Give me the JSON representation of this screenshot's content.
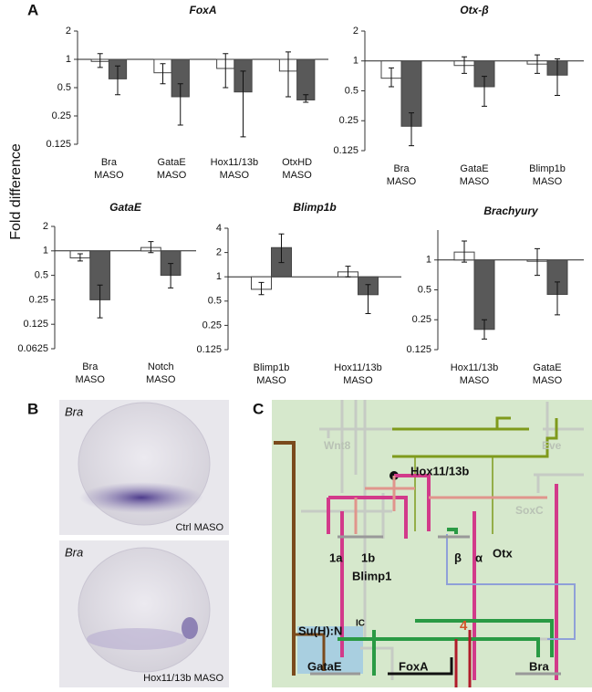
{
  "chart_data": [
    {
      "type": "bar",
      "title": "FoxA",
      "log_scale": true,
      "ylim": [
        0.125,
        2
      ],
      "yticks": [
        2,
        1,
        0.5,
        0.25,
        0.125
      ],
      "categories": [
        [
          "Bra",
          "MASO"
        ],
        [
          "GataE",
          "MASO"
        ],
        [
          "Hox11/13b",
          "MASO"
        ],
        [
          "OtxHD",
          "MASO"
        ]
      ],
      "series": [
        {
          "color": "#ffffff",
          "values": [
            0.95,
            0.72,
            0.8,
            0.75
          ],
          "err_low": [
            0.82,
            0.55,
            0.5,
            0.4
          ],
          "err_high": [
            1.15,
            0.9,
            1.15,
            1.2
          ]
        },
        {
          "color": "#595959",
          "values": [
            0.62,
            0.4,
            0.45,
            0.37
          ],
          "err_low": [
            0.42,
            0.2,
            0.15,
            0.35
          ],
          "err_high": [
            0.85,
            0.55,
            0.75,
            0.42
          ]
        }
      ]
    },
    {
      "type": "bar",
      "title": "Otx-β",
      "log_scale": true,
      "ylim": [
        0.125,
        2
      ],
      "yticks": [
        2,
        1,
        0.5,
        0.25,
        0.125
      ],
      "categories": [
        [
          "Bra",
          "MASO"
        ],
        [
          "GataE",
          "MASO"
        ],
        [
          "Blimp1b",
          "MASO"
        ]
      ],
      "series": [
        {
          "color": "#ffffff",
          "values": [
            0.67,
            0.9,
            0.93
          ],
          "err_low": [
            0.55,
            0.75,
            0.75
          ],
          "err_high": [
            0.85,
            1.1,
            1.15
          ]
        },
        {
          "color": "#595959",
          "values": [
            0.22,
            0.55,
            0.72
          ],
          "err_low": [
            0.14,
            0.35,
            0.45
          ],
          "err_high": [
            0.3,
            0.7,
            1.05
          ]
        }
      ]
    },
    {
      "type": "bar",
      "title": "GataE",
      "log_scale": true,
      "ylim": [
        0.0625,
        2
      ],
      "yticks": [
        2,
        1,
        0.5,
        0.25,
        0.125,
        0.0625
      ],
      "categories": [
        [
          "Bra",
          "MASO"
        ],
        [
          "Notch",
          "MASO"
        ]
      ],
      "series": [
        {
          "color": "#ffffff",
          "values": [
            0.82,
            1.1
          ],
          "err_low": [
            0.75,
            0.95
          ],
          "err_high": [
            0.92,
            1.3
          ]
        },
        {
          "color": "#595959",
          "values": [
            0.25,
            0.5
          ],
          "err_low": [
            0.15,
            0.35
          ],
          "err_high": [
            0.38,
            0.7
          ]
        }
      ]
    },
    {
      "type": "bar",
      "title": "Blimp1b",
      "log_scale": true,
      "ylim": [
        0.125,
        4
      ],
      "yticks": [
        4,
        2,
        1,
        0.5,
        0.25,
        0.125
      ],
      "categories": [
        [
          "Blimp1b",
          "MASO"
        ],
        [
          "Hox11/13b",
          "MASO"
        ]
      ],
      "series": [
        {
          "color": "#ffffff",
          "values": [
            0.7,
            1.15
          ],
          "err_low": [
            0.6,
            1
          ],
          "err_high": [
            0.85,
            1.35
          ]
        },
        {
          "color": "#595959",
          "values": [
            2.3,
            0.6
          ],
          "err_low": [
            1.5,
            0.35
          ],
          "err_high": [
            3.4,
            0.8
          ]
        }
      ]
    },
    {
      "type": "bar",
      "title": "Brachyury",
      "log_scale": true,
      "ylim": [
        0.125,
        2
      ],
      "yticks": [
        1,
        0.5,
        0.25,
        0.125
      ],
      "categories": [
        [
          "Hox11/13b",
          "MASO"
        ],
        [
          "GataE",
          "MASO"
        ]
      ],
      "series": [
        {
          "color": "#ffffff",
          "values": [
            1.2,
            0.97
          ],
          "err_low": [
            0.95,
            0.7
          ],
          "err_high": [
            1.55,
            1.3
          ]
        },
        {
          "color": "#595959",
          "values": [
            0.2,
            0.45
          ],
          "err_low": [
            0.16,
            0.28
          ],
          "err_high": [
            0.25,
            0.6
          ]
        }
      ]
    }
  ],
  "figure": {
    "panel_labels": [
      "A",
      "B",
      "C"
    ],
    "ylabel": "Fold difference"
  },
  "panel_b": {
    "images": [
      {
        "gene": "Bra",
        "caption": "Ctrl MASO"
      },
      {
        "gene": "Bra",
        "caption": "Hox11/13b MASO"
      }
    ]
  },
  "panel_c": {
    "wnt8": "Wnt8",
    "eve": "Eve",
    "hox": "Hox11/13b",
    "soxc": "SoxC",
    "module_1a": "1a",
    "module_1b": "1b",
    "blimp1": "Blimp1",
    "beta": "β",
    "alpha": "α",
    "otx": "Otx",
    "suh": {
      "label": "Su(H):N",
      "superscript": "IC"
    },
    "gatae": "GataE",
    "foxa": "FoxA",
    "bra": "Bra",
    "marker": "4"
  }
}
